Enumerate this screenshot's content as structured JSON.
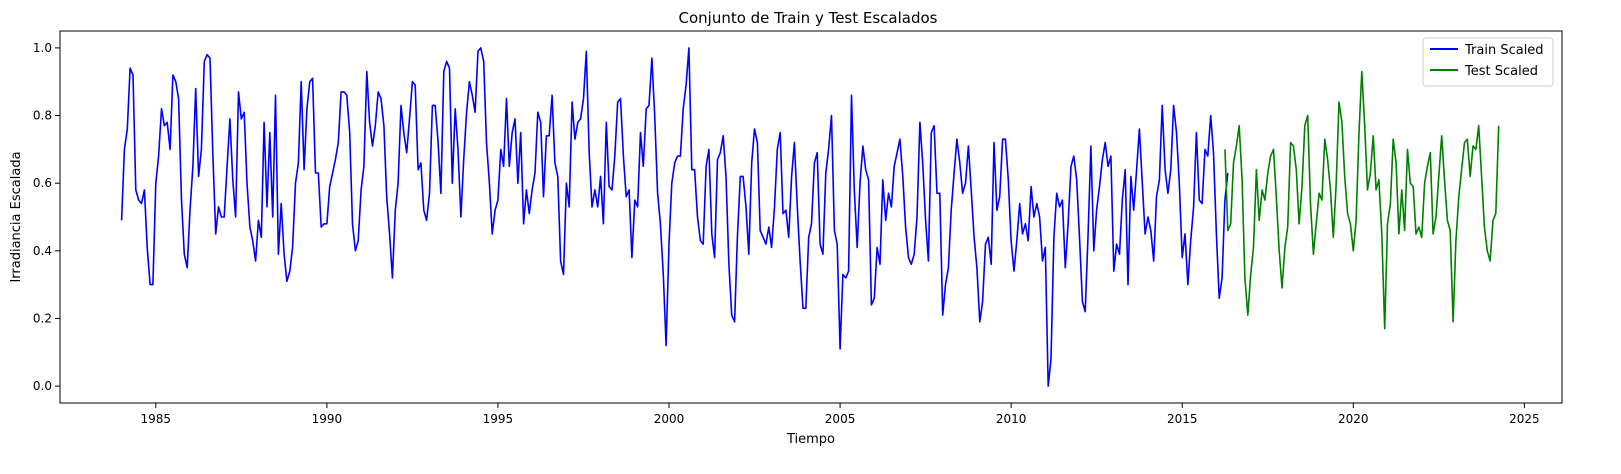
{
  "chart_data": {
    "type": "line",
    "title": "Conjunto de Train y Test Escalados",
    "xlabel": "Tiempo",
    "ylabel": "Irradiancia Escalada",
    "xlim": [
      1982.2,
      2026.1
    ],
    "ylim": [
      -0.05,
      1.05
    ],
    "xticks": [
      1985,
      1990,
      1995,
      2000,
      2005,
      2010,
      2015,
      2020,
      2025
    ],
    "yticks": [
      0.0,
      0.2,
      0.4,
      0.6,
      0.8,
      1.0
    ],
    "xtick_labels": [
      "1985",
      "1990",
      "1995",
      "2000",
      "2005",
      "2010",
      "2015",
      "2020",
      "2025"
    ],
    "ytick_labels": [
      "0.0",
      "0.2",
      "0.4",
      "0.6",
      "0.8",
      "1.0"
    ],
    "grid": false,
    "legend_position": "top-right",
    "series": [
      {
        "name": "Train Scaled",
        "color": "#0000ff",
        "x_start": 1984.0,
        "x_step": 0.08333,
        "values": [
          0.49,
          0.7,
          0.76,
          0.94,
          0.92,
          0.58,
          0.55,
          0.54,
          0.58,
          0.41,
          0.3,
          0.3,
          0.6,
          0.68,
          0.82,
          0.77,
          0.78,
          0.7,
          0.92,
          0.9,
          0.85,
          0.55,
          0.39,
          0.35,
          0.52,
          0.65,
          0.88,
          0.62,
          0.7,
          0.96,
          0.98,
          0.97,
          0.69,
          0.45,
          0.53,
          0.5,
          0.5,
          0.65,
          0.79,
          0.61,
          0.5,
          0.87,
          0.79,
          0.81,
          0.6,
          0.47,
          0.43,
          0.37,
          0.49,
          0.44,
          0.78,
          0.53,
          0.75,
          0.5,
          0.86,
          0.39,
          0.54,
          0.39,
          0.31,
          0.34,
          0.41,
          0.6,
          0.66,
          0.9,
          0.64,
          0.82,
          0.9,
          0.91,
          0.63,
          0.63,
          0.47,
          0.48,
          0.48,
          0.59,
          0.63,
          0.67,
          0.72,
          0.87,
          0.87,
          0.86,
          0.75,
          0.48,
          0.4,
          0.43,
          0.58,
          0.65,
          0.93,
          0.78,
          0.71,
          0.77,
          0.87,
          0.85,
          0.77,
          0.56,
          0.45,
          0.32,
          0.52,
          0.6,
          0.83,
          0.75,
          0.69,
          0.79,
          0.9,
          0.89,
          0.64,
          0.66,
          0.52,
          0.49,
          0.57,
          0.83,
          0.83,
          0.72,
          0.57,
          0.93,
          0.96,
          0.94,
          0.6,
          0.82,
          0.7,
          0.5,
          0.67,
          0.81,
          0.9,
          0.86,
          0.81,
          0.99,
          1.0,
          0.96,
          0.72,
          0.6,
          0.45,
          0.52,
          0.55,
          0.7,
          0.65,
          0.85,
          0.65,
          0.75,
          0.79,
          0.6,
          0.75,
          0.48,
          0.58,
          0.51,
          0.58,
          0.63,
          0.81,
          0.78,
          0.56,
          0.74,
          0.74,
          0.86,
          0.66,
          0.62,
          0.37,
          0.33,
          0.6,
          0.53,
          0.84,
          0.73,
          0.78,
          0.79,
          0.85,
          0.99,
          0.69,
          0.53,
          0.58,
          0.53,
          0.62,
          0.48,
          0.78,
          0.59,
          0.58,
          0.68,
          0.84,
          0.85,
          0.68,
          0.56,
          0.58,
          0.38,
          0.55,
          0.53,
          0.75,
          0.65,
          0.82,
          0.83,
          0.97,
          0.8,
          0.57,
          0.48,
          0.33,
          0.12,
          0.42,
          0.6,
          0.66,
          0.68,
          0.68,
          0.82,
          0.89,
          1.0,
          0.64,
          0.64,
          0.5,
          0.43,
          0.42,
          0.65,
          0.7,
          0.45,
          0.38,
          0.67,
          0.69,
          0.74,
          0.62,
          0.36,
          0.21,
          0.19,
          0.44,
          0.62,
          0.62,
          0.53,
          0.39,
          0.66,
          0.76,
          0.72,
          0.46,
          0.44,
          0.42,
          0.47,
          0.41,
          0.53,
          0.7,
          0.75,
          0.51,
          0.52,
          0.44,
          0.62,
          0.72,
          0.53,
          0.37,
          0.23,
          0.23,
          0.44,
          0.48,
          0.66,
          0.69,
          0.42,
          0.39,
          0.63,
          0.7,
          0.8,
          0.46,
          0.42,
          0.11,
          0.33,
          0.32,
          0.34,
          0.86,
          0.58,
          0.41,
          0.6,
          0.71,
          0.64,
          0.61,
          0.24,
          0.26,
          0.41,
          0.36,
          0.61,
          0.49,
          0.57,
          0.53,
          0.65,
          0.69,
          0.73,
          0.62,
          0.47,
          0.38,
          0.36,
          0.39,
          0.5,
          0.78,
          0.66,
          0.49,
          0.37,
          0.75,
          0.77,
          0.57,
          0.57,
          0.21,
          0.3,
          0.35,
          0.52,
          0.63,
          0.73,
          0.66,
          0.57,
          0.6,
          0.71,
          0.58,
          0.44,
          0.35,
          0.19,
          0.25,
          0.42,
          0.44,
          0.36,
          0.72,
          0.52,
          0.56,
          0.73,
          0.73,
          0.61,
          0.43,
          0.34,
          0.43,
          0.54,
          0.45,
          0.48,
          0.43,
          0.59,
          0.5,
          0.54,
          0.5,
          0.37,
          0.41,
          0.0,
          0.08,
          0.44,
          0.57,
          0.53,
          0.55,
          0.35,
          0.48,
          0.65,
          0.68,
          0.61,
          0.44,
          0.25,
          0.22,
          0.45,
          0.71,
          0.4,
          0.52,
          0.59,
          0.67,
          0.72,
          0.65,
          0.68,
          0.34,
          0.42,
          0.39,
          0.55,
          0.64,
          0.3,
          0.62,
          0.52,
          0.64,
          0.76,
          0.6,
          0.45,
          0.5,
          0.46,
          0.37,
          0.56,
          0.61,
          0.83,
          0.64,
          0.57,
          0.64,
          0.83,
          0.75,
          0.6,
          0.38,
          0.45,
          0.3,
          0.43,
          0.53,
          0.75,
          0.55,
          0.54,
          0.7,
          0.68,
          0.8,
          0.69,
          0.45,
          0.26,
          0.32,
          0.55,
          0.63
        ]
      },
      {
        "name": "Test Scaled",
        "color": "#008000",
        "x_start": 2016.25,
        "x_step": 0.08333,
        "values": [
          0.7,
          0.46,
          0.48,
          0.66,
          0.71,
          0.77,
          0.61,
          0.32,
          0.21,
          0.33,
          0.41,
          0.64,
          0.49,
          0.58,
          0.55,
          0.63,
          0.68,
          0.7,
          0.56,
          0.4,
          0.29,
          0.41,
          0.47,
          0.72,
          0.71,
          0.64,
          0.48,
          0.59,
          0.77,
          0.8,
          0.54,
          0.39,
          0.48,
          0.57,
          0.55,
          0.73,
          0.67,
          0.58,
          0.44,
          0.6,
          0.84,
          0.78,
          0.62,
          0.51,
          0.48,
          0.4,
          0.49,
          0.75,
          0.93,
          0.77,
          0.58,
          0.63,
          0.74,
          0.58,
          0.61,
          0.45,
          0.17,
          0.48,
          0.54,
          0.73,
          0.66,
          0.45,
          0.58,
          0.46,
          0.7,
          0.6,
          0.59,
          0.45,
          0.47,
          0.44,
          0.6,
          0.65,
          0.69,
          0.45,
          0.5,
          0.62,
          0.74,
          0.61,
          0.49,
          0.46,
          0.19,
          0.43,
          0.56,
          0.64,
          0.72,
          0.73,
          0.62,
          0.71,
          0.7,
          0.77,
          0.62,
          0.47,
          0.4,
          0.37,
          0.49,
          0.51,
          0.77
        ]
      }
    ]
  }
}
